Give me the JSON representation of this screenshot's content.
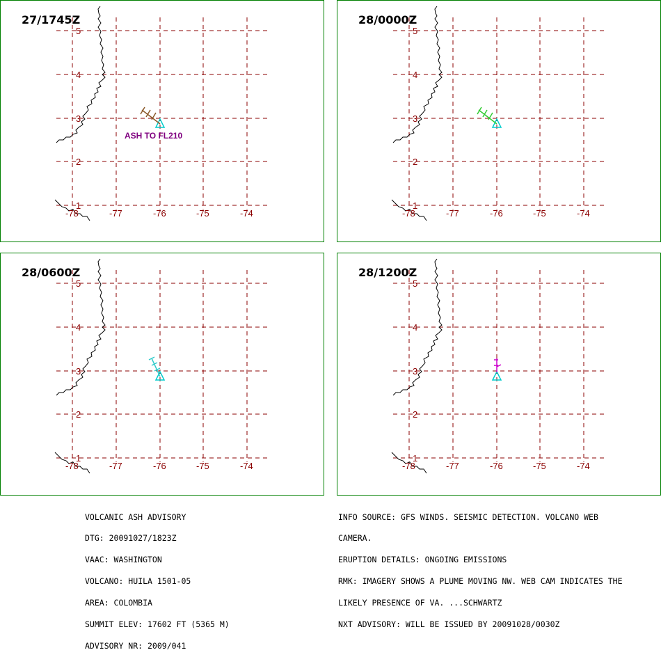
{
  "panels": [
    {
      "time": "27/1745Z",
      "ash_label": "ASH TO FL210",
      "plume_color": "#8b5a2b"
    },
    {
      "time": "28/0000Z",
      "ash_label": "",
      "plume_color": "#33cc33"
    },
    {
      "time": "28/0600Z",
      "ash_label": "",
      "plume_color": "#33cccc"
    },
    {
      "time": "28/1200Z",
      "ash_label": "",
      "plume_color": "#cc00cc"
    }
  ],
  "map": {
    "lat_labels": [
      "5",
      "4",
      "3",
      "2",
      "1"
    ],
    "lon_labels": [
      "-78",
      "-77",
      "-76",
      "-75",
      "-74"
    ],
    "grid_color": "#8b0000",
    "volcano_color": "#00cccc"
  },
  "advisory_left": [
    "VOLCANIC ASH ADVISORY",
    "DTG: 20091027/1823Z",
    "VAAC: WASHINGTON",
    "VOLCANO: HUILA 1501-05",
    "AREA: COLOMBIA",
    "SUMMIT ELEV: 17602 FT (5365 M)",
    "ADVISORY NR: 2009/041"
  ],
  "advisory_right": [
    "INFO SOURCE: GFS WINDS. SEISMIC DETECTION. VOLCANO WEB",
    "CAMERA.",
    "ERUPTION DETAILS: ONGOING EMISSIONS",
    "RMK: IMAGERY SHOWS A PLUME MOVING NW. WEB CAM INDICATES THE",
    "LIKELY PRESENCE OF VA. ...SCHWARTZ",
    "NXT ADVISORY: WILL BE ISSUED BY 20091028/0030Z"
  ]
}
